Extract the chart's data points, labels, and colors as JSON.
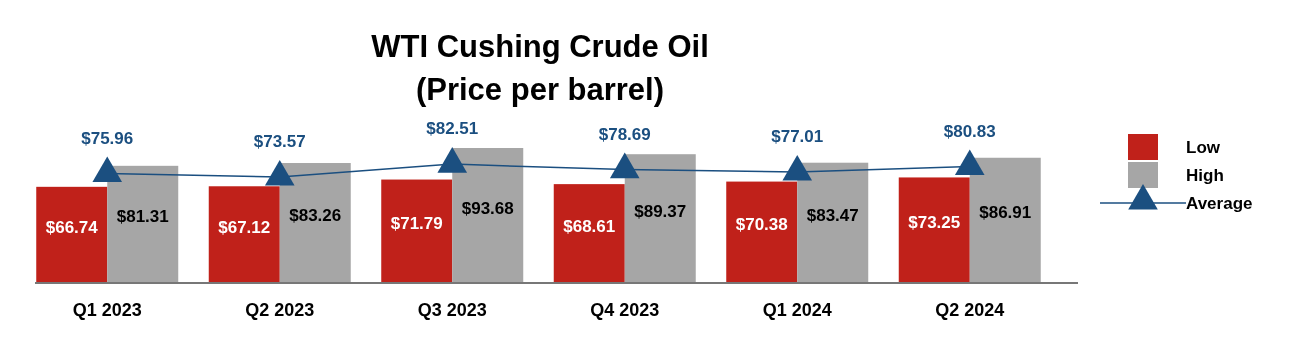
{
  "chart_data": {
    "type": "bar",
    "title": "WTI Cushing Crude Oil",
    "subtitle": "(Price per barrel)",
    "categories": [
      "Q1 2023",
      "Q2 2023",
      "Q3 2023",
      "Q4 2023",
      "Q1 2024",
      "Q2 2024"
    ],
    "series": [
      {
        "name": "Low",
        "color": "#c0211a",
        "values": [
          66.74,
          67.12,
          71.79,
          68.61,
          70.38,
          73.25
        ],
        "value_labels": [
          "$66.74",
          "$67.12",
          "$71.79",
          "$68.61",
          "$70.38",
          "$73.25"
        ]
      },
      {
        "name": "High",
        "color": "#a6a6a6",
        "values": [
          81.31,
          83.26,
          93.68,
          89.37,
          83.47,
          86.91
        ],
        "value_labels": [
          "$81.31",
          "$83.26",
          "$93.68",
          "$89.37",
          "$83.47",
          "$86.91"
        ]
      },
      {
        "name": "Average",
        "type": "line",
        "color": "#1b4f80",
        "marker": "triangle",
        "values": [
          75.96,
          73.57,
          82.51,
          78.69,
          77.01,
          80.83
        ],
        "value_labels": [
          "$75.96",
          "$73.57",
          "$82.51",
          "$78.69",
          "$77.01",
          "$80.83"
        ]
      }
    ],
    "legend": "right",
    "grid": false
  }
}
